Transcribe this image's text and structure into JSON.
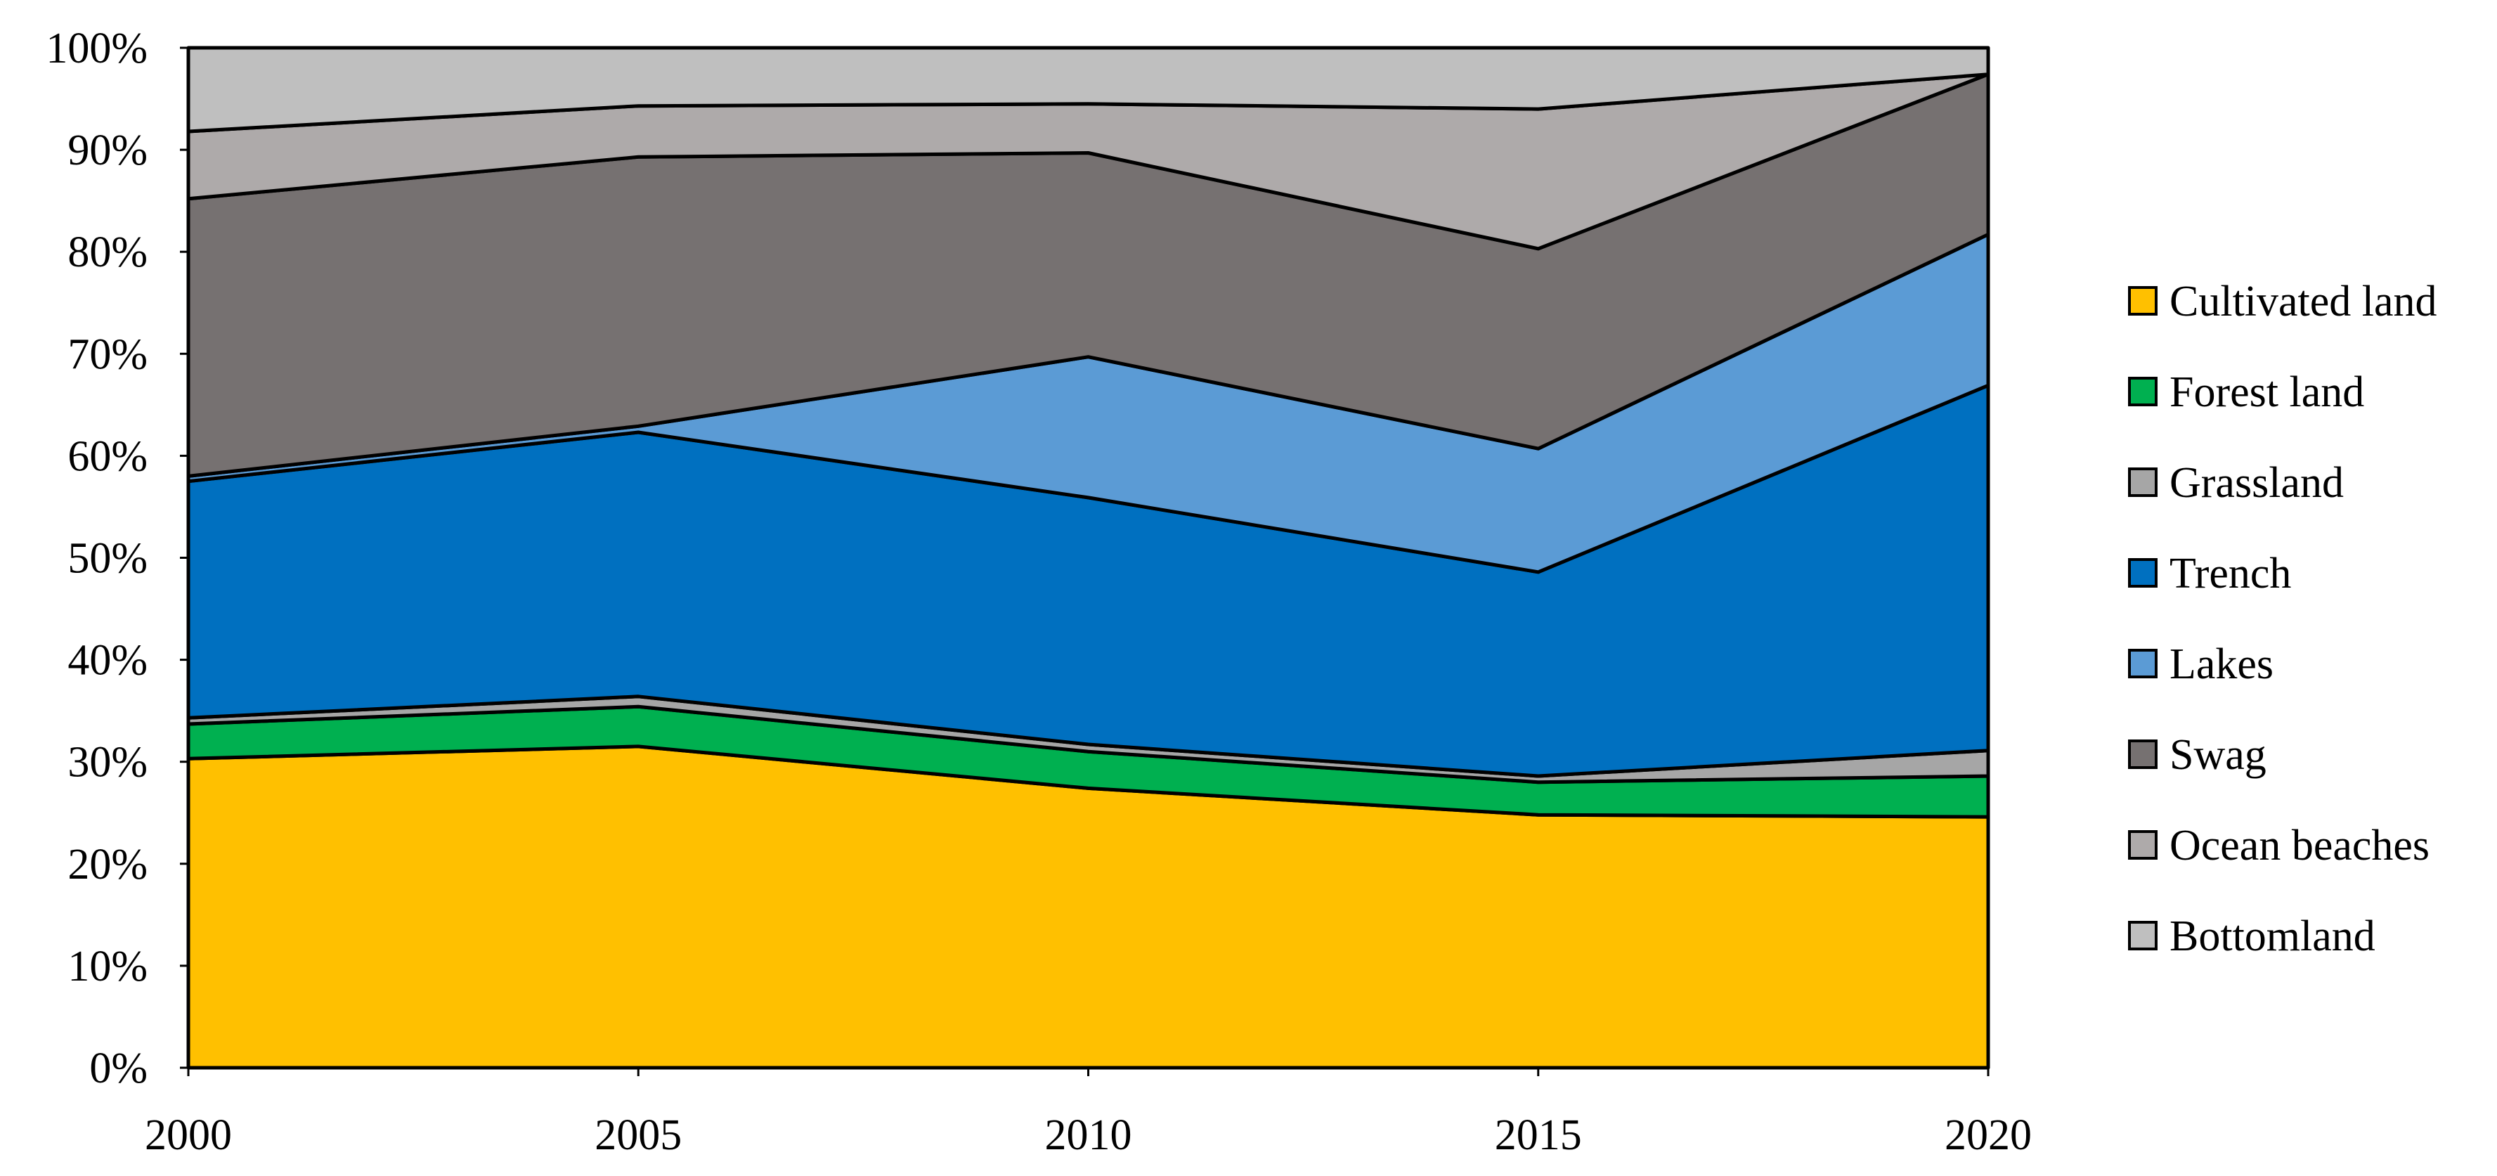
{
  "chart_data": {
    "type": "area",
    "stacked": "percent",
    "x": [
      2000,
      2005,
      2010,
      2015,
      2020
    ],
    "xticks": [
      "2000",
      "2005",
      "2010",
      "2015",
      "2020"
    ],
    "yticks": [
      "0%",
      "10%",
      "20%",
      "30%",
      "40%",
      "50%",
      "60%",
      "70%",
      "80%",
      "90%",
      "100%"
    ],
    "ylim": [
      0,
      100
    ],
    "grid": false,
    "legend_position": "right",
    "series": [
      {
        "name": "Cultivated land",
        "color": "#FFC000",
        "values": [
          30.3,
          31.5,
          27.4,
          24.8,
          24.6
        ]
      },
      {
        "name": "Forest land",
        "color": "#00B050",
        "values": [
          3.4,
          3.9,
          3.6,
          3.2,
          4.0
        ]
      },
      {
        "name": "Grassland",
        "color": "#A6A6A6",
        "values": [
          0.6,
          1.0,
          0.7,
          0.6,
          2.5
        ]
      },
      {
        "name": "Trench",
        "color": "#0070C0",
        "values": [
          23.2,
          25.9,
          24.2,
          20.0,
          35.8
        ]
      },
      {
        "name": "Lakes",
        "color": "#5B9BD5",
        "values": [
          0.5,
          0.6,
          13.8,
          12.1,
          14.8
        ]
      },
      {
        "name": "Swag",
        "color": "#767171",
        "values": [
          27.2,
          26.4,
          20.0,
          19.6,
          15.7
        ]
      },
      {
        "name": "Ocean beaches",
        "color": "#AEAAAA",
        "values": [
          6.6,
          5.0,
          4.8,
          13.7,
          0.0
        ]
      },
      {
        "name": "Bottomland",
        "color": "#BFBFBF",
        "values": [
          8.2,
          5.7,
          5.5,
          6.0,
          2.6
        ]
      }
    ]
  }
}
